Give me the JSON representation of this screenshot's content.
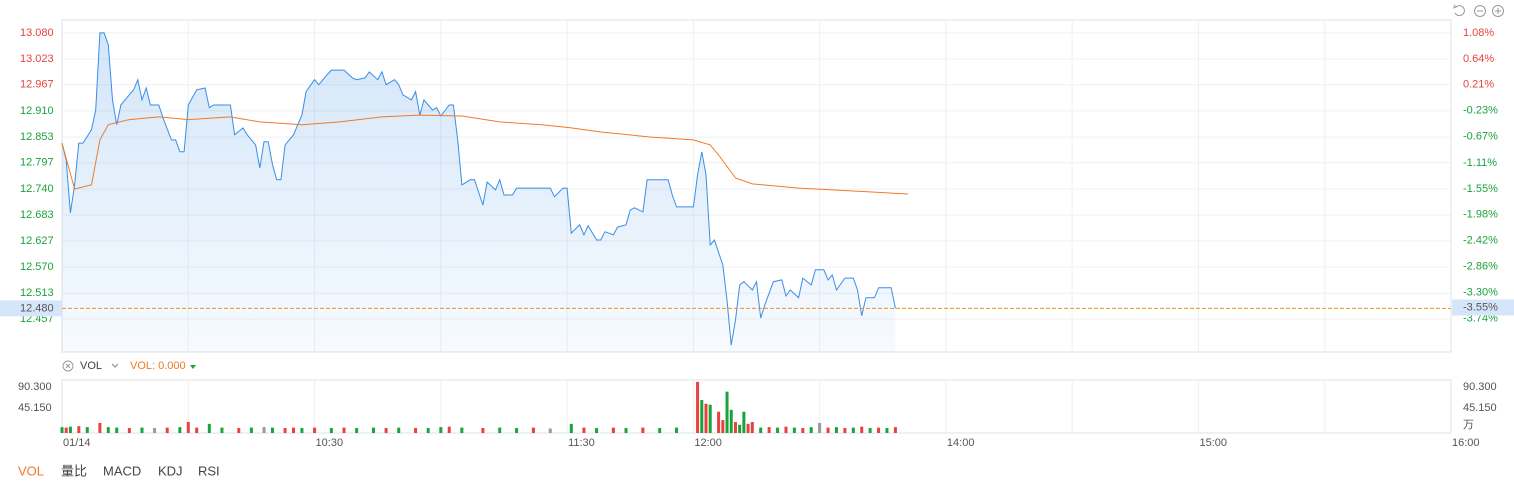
{
  "chart_data": [
    {
      "type": "line",
      "price": {
        "color": "#3a8ee6",
        "x": [
          0,
          1,
          2,
          3,
          4,
          5,
          7,
          8,
          9,
          10,
          11,
          12,
          13,
          14,
          16,
          17,
          18,
          19,
          20,
          21,
          23,
          24,
          26,
          27,
          28,
          29,
          30,
          32,
          34,
          35,
          36,
          40,
          41,
          43,
          44,
          46,
          47,
          48,
          49,
          50,
          51,
          52,
          53,
          55,
          57,
          58,
          60,
          61,
          63,
          64,
          67,
          69,
          70,
          72,
          73,
          75,
          76,
          77,
          79,
          80,
          81,
          83,
          84,
          85,
          86,
          88,
          89,
          90,
          92,
          93,
          94,
          95,
          97,
          98,
          100,
          101,
          103,
          104,
          105,
          107,
          108,
          116,
          117,
          119,
          120,
          121,
          123,
          124,
          125,
          127,
          128,
          129,
          131,
          132,
          134,
          135,
          136,
          138,
          139,
          144,
          145,
          146,
          150,
          151,
          152,
          153,
          154,
          155,
          157,
          158,
          159,
          160,
          161,
          162,
          164,
          165,
          166,
          167,
          169,
          171,
          172,
          173,
          175,
          176,
          178,
          179,
          181,
          182,
          183,
          184,
          186,
          188,
          189,
          190,
          191,
          193,
          194,
          197,
          198
        ],
        "values": [
          12.84,
          12.803,
          12.688,
          12.749,
          12.84,
          12.84,
          12.869,
          12.912,
          13.08,
          13.08,
          13.054,
          12.934,
          12.88,
          12.923,
          12.945,
          12.956,
          12.978,
          12.934,
          12.96,
          12.923,
          12.923,
          12.895,
          12.847,
          12.847,
          12.821,
          12.821,
          12.923,
          12.956,
          12.96,
          12.917,
          12.923,
          12.923,
          12.858,
          12.873,
          12.858,
          12.836,
          12.786,
          12.843,
          12.843,
          12.793,
          12.76,
          12.76,
          12.836,
          12.858,
          12.901,
          12.952,
          12.978,
          12.967,
          12.989,
          12.999,
          12.999,
          12.982,
          12.978,
          12.982,
          12.995,
          12.978,
          12.995,
          12.967,
          12.978,
          12.967,
          12.945,
          12.934,
          12.952,
          12.901,
          12.934,
          12.912,
          12.917,
          12.899,
          12.923,
          12.923,
          12.847,
          12.749,
          12.76,
          12.76,
          12.705,
          12.755,
          12.738,
          12.76,
          12.727,
          12.727,
          12.742,
          12.742,
          12.723,
          12.742,
          12.742,
          12.644,
          12.662,
          12.64,
          12.66,
          12.629,
          12.629,
          12.647,
          12.64,
          12.657,
          12.662,
          12.694,
          12.699,
          12.69,
          12.76,
          12.76,
          12.727,
          12.701,
          12.701,
          12.771,
          12.821,
          12.771,
          12.618,
          12.629,
          12.575,
          12.498,
          12.4,
          12.455,
          12.531,
          12.538,
          12.52,
          12.538,
          12.459,
          12.488,
          12.538,
          12.542,
          12.507,
          12.52,
          12.503,
          12.546,
          12.531,
          12.564,
          12.564,
          12.542,
          12.553,
          12.52,
          12.546,
          12.546,
          12.52,
          12.464,
          12.503,
          12.503,
          12.525,
          12.525,
          12.48
        ]
      },
      "average": {
        "color": "#f07a26",
        "x": [
          0,
          3,
          7,
          9,
          11,
          16,
          23,
          30,
          40,
          47,
          57,
          66,
          76,
          85,
          95,
          104,
          114,
          121,
          128,
          140,
          150,
          154,
          156,
          160,
          164,
          175,
          187,
          201
        ],
        "values": [
          12.84,
          12.74,
          12.749,
          12.847,
          12.88,
          12.891,
          12.897,
          12.891,
          12.897,
          12.886,
          12.88,
          12.886,
          12.897,
          12.901,
          12.899,
          12.886,
          12.88,
          12.873,
          12.864,
          12.853,
          12.847,
          12.836,
          12.814,
          12.764,
          12.751,
          12.742,
          12.736,
          12.729
        ]
      },
      "xlim": [
        0,
        330
      ],
      "xgrid": [
        0,
        30,
        60,
        90,
        120,
        150,
        180,
        210,
        240,
        270,
        300,
        330
      ],
      "ylim": [
        12.385,
        13.108
      ],
      "yticks": [
        {
          "value": 13.08,
          "label": "13.080"
        },
        {
          "value": 13.023,
          "label": "13.023"
        },
        {
          "value": 12.967,
          "label": "12.967"
        },
        {
          "value": 12.91,
          "label": "12.910"
        },
        {
          "value": 12.853,
          "label": "12.853"
        },
        {
          "value": 12.797,
          "label": "12.797"
        },
        {
          "value": 12.74,
          "label": "12.740"
        },
        {
          "value": 12.683,
          "label": "12.683"
        },
        {
          "value": 12.627,
          "label": "12.627"
        },
        {
          "value": 12.57,
          "label": "12.570"
        },
        {
          "value": 12.513,
          "label": "12.513"
        },
        {
          "value": 12.457,
          "label": "12.457"
        }
      ],
      "y2lim": [
        -4.3,
        1.3
      ],
      "y2ticks": [
        {
          "value": 1.08,
          "label": "1.08%"
        },
        {
          "value": 0.64,
          "label": "0.64%"
        },
        {
          "value": 0.21,
          "label": "0.21%"
        },
        {
          "value": -0.23,
          "label": "-0.23%"
        },
        {
          "value": -0.67,
          "label": "-0.67%"
        },
        {
          "value": -1.11,
          "label": "-1.11%"
        },
        {
          "value": -1.55,
          "label": "-1.55%"
        },
        {
          "value": -1.98,
          "label": "-1.98%"
        },
        {
          "value": -2.42,
          "label": "-2.42%"
        },
        {
          "value": -2.86,
          "label": "-2.86%"
        },
        {
          "value": -3.3,
          "label": "-3.30%"
        },
        {
          "value": -3.74,
          "label": "-3.74%"
        }
      ],
      "last_price": {
        "value": 12.48,
        "label": "12.480"
      },
      "last_change": {
        "value": -3.55,
        "label": "-3.55%"
      },
      "grid": true
    },
    {
      "type": "bar",
      "title": "VOL",
      "subtitle": "VOL: 0.000",
      "unit": "万",
      "x": [
        0,
        1,
        2,
        4,
        6,
        9,
        11,
        13,
        16,
        19,
        22,
        25,
        28,
        30,
        32,
        35,
        38,
        42,
        45,
        48,
        50,
        53,
        55,
        57,
        60,
        64,
        67,
        70,
        74,
        77,
        80,
        84,
        87,
        90,
        92,
        95,
        100,
        104,
        108,
        112,
        116,
        121,
        124,
        127,
        131,
        134,
        138,
        142,
        146,
        151,
        152,
        153,
        154,
        156,
        157,
        158,
        159,
        160,
        161,
        162,
        163,
        164,
        166,
        168,
        170,
        172,
        174,
        176,
        178,
        180,
        182,
        184,
        186,
        188,
        190,
        192,
        194,
        196,
        198
      ],
      "values": [
        4,
        3,
        5,
        6,
        4,
        13,
        4,
        3,
        2,
        3,
        2,
        3,
        4,
        15,
        3,
        11,
        3,
        2,
        3,
        4,
        3,
        2,
        3,
        2,
        3,
        2,
        3,
        2,
        3,
        2,
        3,
        2,
        2,
        4,
        5,
        3,
        2,
        3,
        2,
        3,
        1,
        11,
        3,
        2,
        3,
        2,
        3,
        2,
        3,
        101,
        62,
        54,
        52,
        37,
        19,
        80,
        41,
        15,
        9,
        37,
        11,
        15,
        3,
        4,
        3,
        5,
        3,
        2,
        4,
        13,
        3,
        4,
        2,
        3,
        5,
        2,
        3,
        2,
        4
      ],
      "colors": [
        "#1aa33b",
        "#e8423f",
        "#1aa33b",
        "#e8423f",
        "#1aa33b",
        "#e8423f",
        "#1aa33b",
        "#1aa33b",
        "#e8423f",
        "#1aa33b",
        "#999999",
        "#e8423f",
        "#1aa33b",
        "#e8423f",
        "#e8423f",
        "#1aa33b",
        "#1aa33b",
        "#e8423f",
        "#1aa33b",
        "#999999",
        "#1aa33b",
        "#e8423f",
        "#e8423f",
        "#1aa33b",
        "#e8423f",
        "#1aa33b",
        "#e8423f",
        "#1aa33b",
        "#1aa33b",
        "#e8423f",
        "#1aa33b",
        "#e8423f",
        "#1aa33b",
        "#1aa33b",
        "#e8423f",
        "#1aa33b",
        "#e8423f",
        "#1aa33b",
        "#1aa33b",
        "#e8423f",
        "#999999",
        "#1aa33b",
        "#e8423f",
        "#1aa33b",
        "#e8423f",
        "#1aa33b",
        "#e8423f",
        "#1aa33b",
        "#1aa33b",
        "#e8423f",
        "#1aa33b",
        "#e8423f",
        "#1aa33b",
        "#e8423f",
        "#e8423f",
        "#1aa33b",
        "#1aa33b",
        "#e8423f",
        "#1aa33b",
        "#1aa33b",
        "#e8423f",
        "#e8423f",
        "#1aa33b",
        "#e8423f",
        "#1aa33b",
        "#e8423f",
        "#1aa33b",
        "#e8423f",
        "#1aa33b",
        "#999999",
        "#e8423f",
        "#1aa33b",
        "#e8423f",
        "#1aa33b",
        "#e8423f",
        "#1aa33b",
        "#e8423f",
        "#1aa33b",
        "#e8423f"
      ],
      "xlim": [
        0,
        330
      ],
      "xticks": [
        {
          "value": 0,
          "label": "01/14"
        },
        {
          "value": 60,
          "label": "10:30"
        },
        {
          "value": 120,
          "label": "11:30"
        },
        {
          "value": 150,
          "label": "12:00"
        },
        {
          "value": 210,
          "label": "14:00"
        },
        {
          "value": 270,
          "label": "15:00"
        },
        {
          "value": 330,
          "label": "16:00"
        }
      ],
      "ylim": [
        0,
        105
      ],
      "yticks": [
        {
          "value": 90.3,
          "label": "90.300"
        },
        {
          "value": 45.15,
          "label": "45.150"
        }
      ]
    }
  ],
  "tabs": [
    "VOL",
    "量比",
    "MACD",
    "KDJ",
    "RSI"
  ]
}
